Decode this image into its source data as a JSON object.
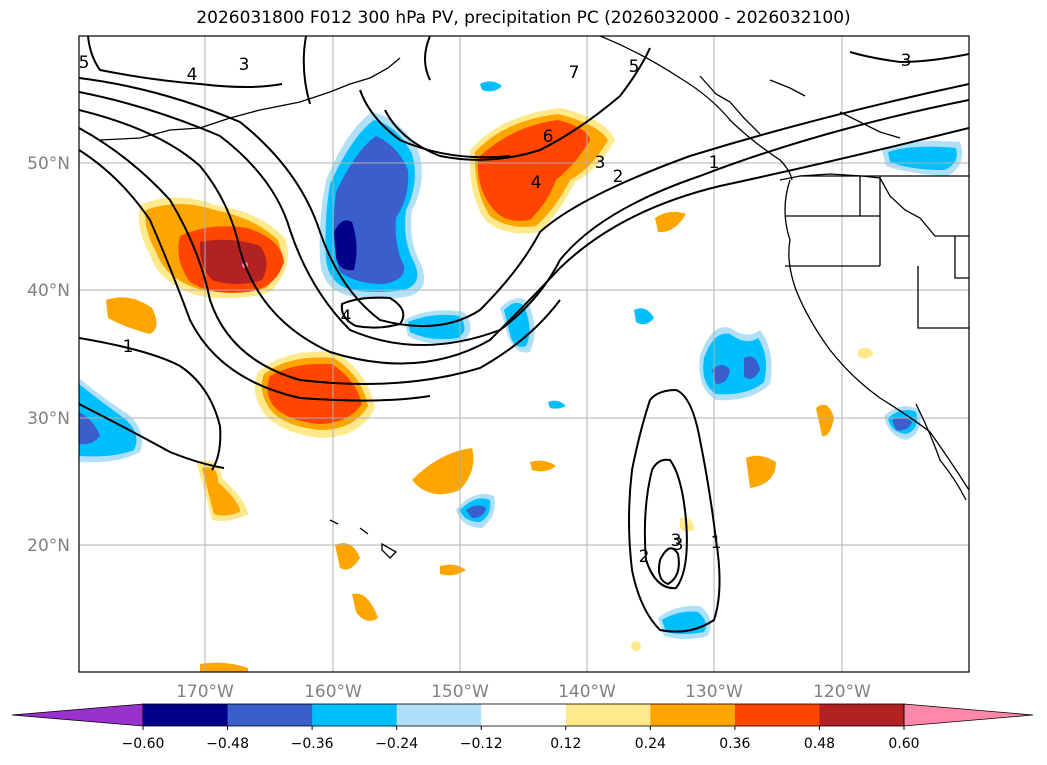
{
  "title": "2026031800 F012 300 hPa PV, precipitation PC (2026032000 - 2026032100)",
  "lat_labels": [
    "50°N",
    "40°N",
    "30°N",
    "20°N"
  ],
  "lon_labels": [
    "170°W",
    "160°W",
    "150°W",
    "140°W",
    "130°W",
    "120°W"
  ],
  "colorbar": {
    "ticks": [
      "−0.60",
      "−0.48",
      "−0.36",
      "−0.24",
      "−0.12",
      "0.12",
      "0.24",
      "0.36",
      "0.48",
      "0.60"
    ],
    "colors": [
      "#9932cc",
      "#00008b",
      "#3a5fcd",
      "#00bfff",
      "#afe0f8",
      "#ffffff",
      "#ffe98a",
      "#ffa500",
      "#ff4500",
      "#b22222",
      "#ff88aa"
    ]
  },
  "contour_labels": [
    "5",
    "4",
    "3",
    "7",
    "5",
    "6",
    "3",
    "2",
    "1",
    "4",
    "3",
    "1",
    "4",
    "3",
    "1",
    "3",
    "2"
  ],
  "colors": {
    "coast": "#000000",
    "grid": "#b0b0b0",
    "label_gray": "#808080"
  }
}
